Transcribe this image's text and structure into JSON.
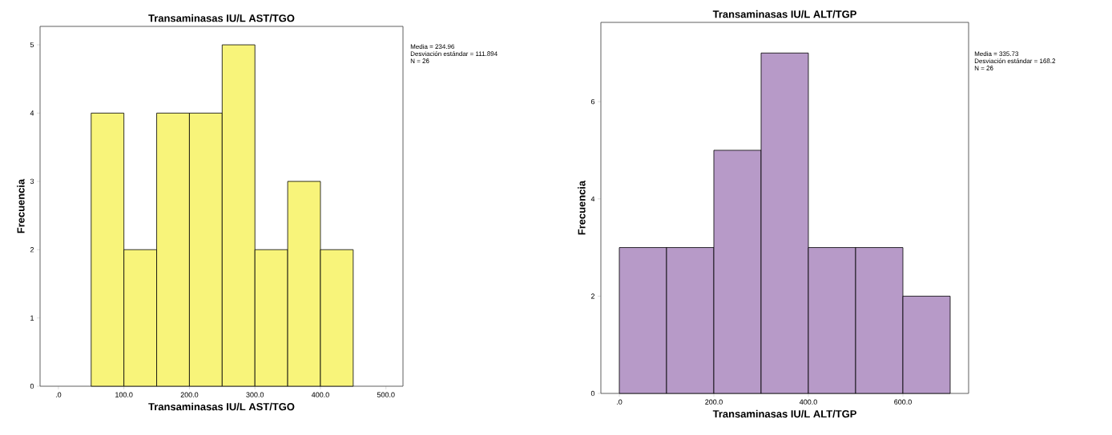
{
  "chart_data": [
    {
      "type": "histogram",
      "title": "Transaminasas IU/L    AST/TGO",
      "xlabel": "Transaminasas IU/L    AST/TGO",
      "ylabel": "Frecuencia",
      "color": "#f8f47a",
      "bins": [
        50,
        100,
        150,
        200,
        250,
        300,
        350,
        400,
        450
      ],
      "values": [
        4,
        2,
        4,
        4,
        5,
        2,
        3,
        2
      ],
      "xlim": [
        -28,
        526
      ],
      "ylim": [
        0,
        5.27
      ],
      "xticks": [
        {
          "value": 0,
          "label": ".0"
        },
        {
          "value": 100,
          "label": "100.0"
        },
        {
          "value": 200,
          "label": "200.0"
        },
        {
          "value": 300,
          "label": "300.0"
        },
        {
          "value": 400,
          "label": "400.0"
        },
        {
          "value": 500,
          "label": "500.0"
        }
      ],
      "yticks": [
        0,
        1,
        2,
        3,
        4,
        5
      ],
      "annotations": [
        "Media = 234.96",
        "Desviación estándar = 111.894",
        "N = 26"
      ]
    },
    {
      "type": "histogram",
      "title": "Transaminasas IU/L    ALT/TGP",
      "xlabel": "Transaminasas IU/L    ALT/TGP",
      "ylabel": "Frecuencia",
      "color": "#b79ac8",
      "bins": [
        0,
        100,
        200,
        300,
        400,
        500,
        600,
        700
      ],
      "values": [
        3,
        3,
        5,
        7,
        3,
        3,
        2
      ],
      "xlim": [
        -39,
        739
      ],
      "ylim": [
        0,
        7.63
      ],
      "xticks": [
        {
          "value": 0,
          "label": ".0"
        },
        {
          "value": 200,
          "label": "200.0"
        },
        {
          "value": 400,
          "label": "400.0"
        },
        {
          "value": 600,
          "label": "600.0"
        }
      ],
      "yticks": [
        0,
        2,
        4,
        6
      ],
      "annotations": [
        "Media = 335.73",
        "Desviación estándar = 168.2",
        "N = 26"
      ]
    }
  ]
}
